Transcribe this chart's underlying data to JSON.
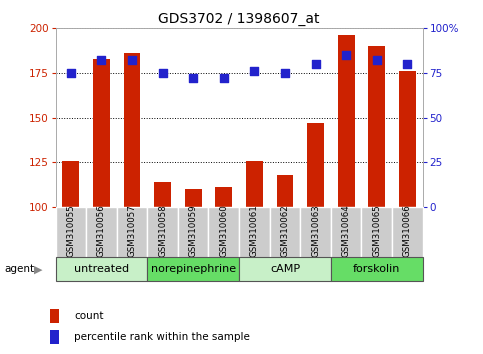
{
  "title": "GDS3702 / 1398607_at",
  "samples": [
    "GSM310055",
    "GSM310056",
    "GSM310057",
    "GSM310058",
    "GSM310059",
    "GSM310060",
    "GSM310061",
    "GSM310062",
    "GSM310063",
    "GSM310064",
    "GSM310065",
    "GSM310066"
  ],
  "count_values": [
    126,
    183,
    186,
    114,
    110,
    111,
    126,
    118,
    147,
    196,
    190,
    176
  ],
  "percentile_values": [
    75,
    82,
    82,
    75,
    72,
    72,
    76,
    75,
    80,
    85,
    82,
    80
  ],
  "ylim_left": [
    100,
    200
  ],
  "ylim_right": [
    0,
    100
  ],
  "yticks_left": [
    100,
    125,
    150,
    175,
    200
  ],
  "yticks_right": [
    0,
    25,
    50,
    75,
    100
  ],
  "agent_groups": [
    {
      "label": "untreated",
      "start": 0,
      "end": 3
    },
    {
      "label": "norepinephrine",
      "start": 3,
      "end": 6
    },
    {
      "label": "cAMP",
      "start": 6,
      "end": 9
    },
    {
      "label": "forskolin",
      "start": 9,
      "end": 12
    }
  ],
  "bar_color": "#cc2200",
  "dot_color": "#2222cc",
  "background_color": "#ffffff",
  "agent_bg_color_light": "#c8f0c8",
  "agent_bg_color_dark": "#66dd66",
  "sample_bg_color": "#cccccc",
  "grid_color": "#000000",
  "bar_width": 0.55,
  "dot_size": 28,
  "legend_items": [
    "count",
    "percentile rank within the sample"
  ],
  "title_fontsize": 10,
  "tick_fontsize": 7.5,
  "sample_fontsize": 6.2,
  "agent_fontsize": 8,
  "legend_fontsize": 7.5,
  "agent_label": "agent"
}
